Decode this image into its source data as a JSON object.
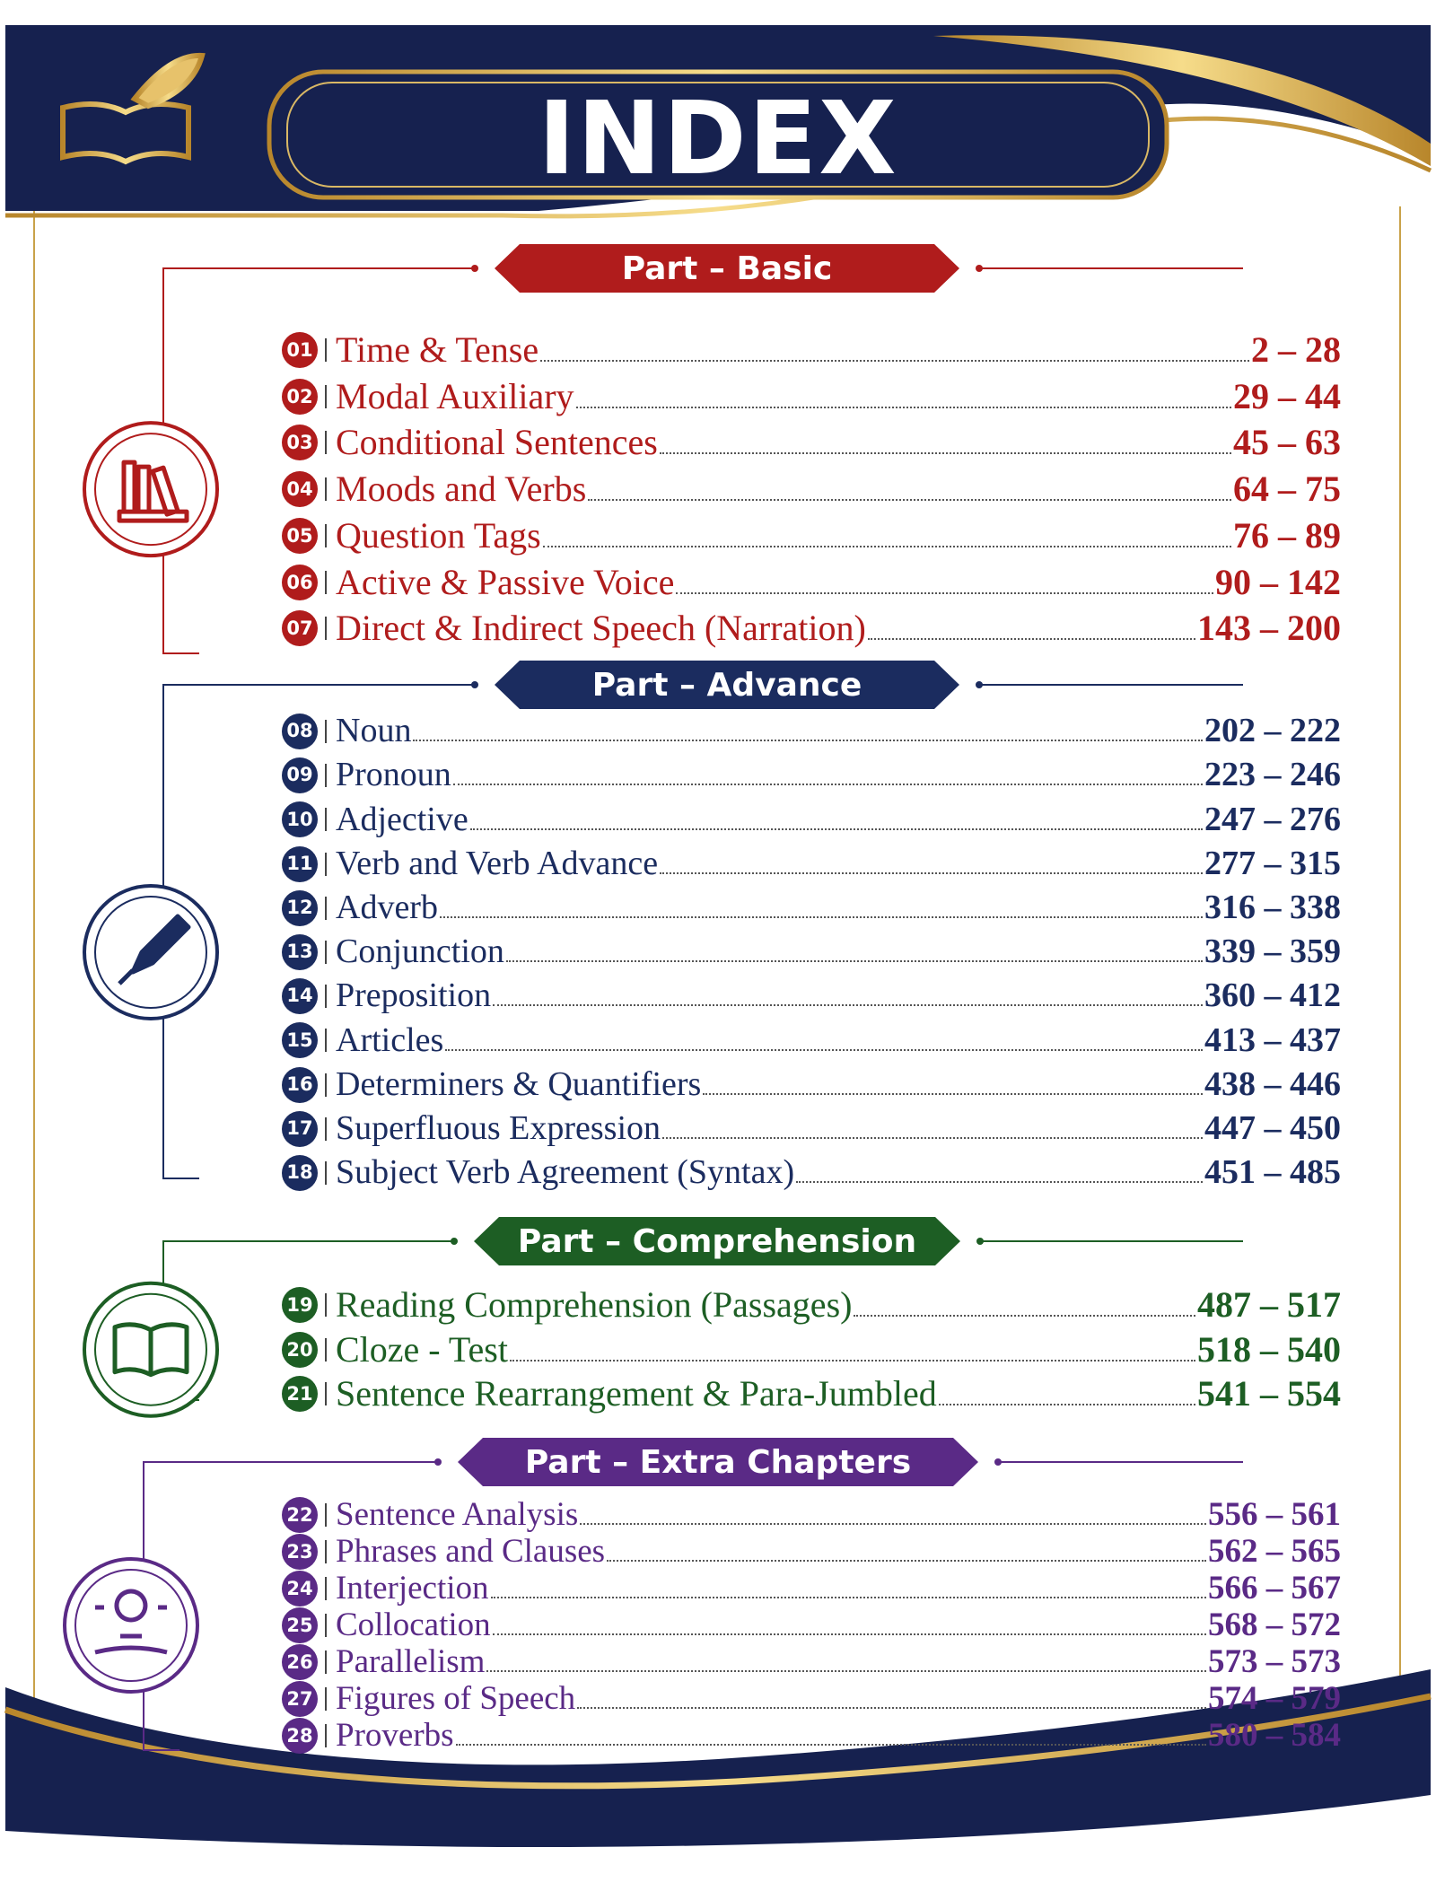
{
  "header": {
    "title": "INDEX"
  },
  "sections": [
    {
      "title": "Part – Basic",
      "color": "#b01c1c",
      "entries": [
        {
          "number": "01",
          "title": "Time & Tense",
          "pages": "2 – 28"
        },
        {
          "number": "02",
          "title": "Modal Auxiliary",
          "pages": "29 – 44"
        },
        {
          "number": "03",
          "title": "Conditional Sentences",
          "pages": "45 – 63"
        },
        {
          "number": "04",
          "title": "Moods and Verbs",
          "pages": "64 – 75"
        },
        {
          "number": "05",
          "title": "Question Tags",
          "pages": "76 – 89"
        },
        {
          "number": "06",
          "title": "Active & Passive Voice",
          "pages": "90 – 142"
        },
        {
          "number": "07",
          "title": "Direct & Indirect Speech (Narration)",
          "pages": "143 – 200"
        }
      ]
    },
    {
      "title": "Part – Advance",
      "color": "#1b2c5f",
      "entries": [
        {
          "number": "08",
          "title": "Noun",
          "pages": "202 – 222"
        },
        {
          "number": "09",
          "title": "Pronoun",
          "pages": "223 – 246"
        },
        {
          "number": "10",
          "title": "Adjective",
          "pages": "247 – 276"
        },
        {
          "number": "11",
          "title": "Verb and Verb Advance",
          "pages": "277 – 315"
        },
        {
          "number": "12",
          "title": "Adverb",
          "pages": "316 – 338"
        },
        {
          "number": "13",
          "title": "Conjunction",
          "pages": "339 – 359"
        },
        {
          "number": "14",
          "title": "Preposition",
          "pages": "360 – 412"
        },
        {
          "number": "15",
          "title": "Articles",
          "pages": "413 – 437"
        },
        {
          "number": "16",
          "title": "Determiners & Quantifiers",
          "pages": "438 – 446"
        },
        {
          "number": "17",
          "title": "Superfluous Expression",
          "pages": "447 – 450"
        },
        {
          "number": "18",
          "title": "Subject Verb Agreement (Syntax)",
          "pages": "451 – 485"
        }
      ]
    },
    {
      "title": "Part – Comprehension",
      "color": "#1d5e24",
      "entries": [
        {
          "number": "19",
          "title": "Reading Comprehension (Passages)",
          "pages": "487 – 517"
        },
        {
          "number": "20",
          "title": "Cloze - Test",
          "pages": "518 – 540"
        },
        {
          "number": "21",
          "title": "Sentence Rearrangement & Para-Jumbled",
          "pages": "541 – 554"
        }
      ]
    },
    {
      "title": "Part – Extra Chapters",
      "color": "#5a2a86",
      "entries": [
        {
          "number": "22",
          "title": "Sentence Analysis",
          "pages": "556 – 561"
        },
        {
          "number": "23",
          "title": "Phrases and Clauses",
          "pages": "562 – 565"
        },
        {
          "number": "24",
          "title": "Interjection",
          "pages": "566 – 567"
        },
        {
          "number": "25",
          "title": "Collocation",
          "pages": "568 – 572"
        },
        {
          "number": "26",
          "title": "Parallelism",
          "pages": "573 – 573"
        },
        {
          "number": "27",
          "title": "Figures of Speech",
          "pages": "574 – 579"
        },
        {
          "number": "28",
          "title": "Proverbs",
          "pages": "580 – 584"
        }
      ]
    }
  ]
}
